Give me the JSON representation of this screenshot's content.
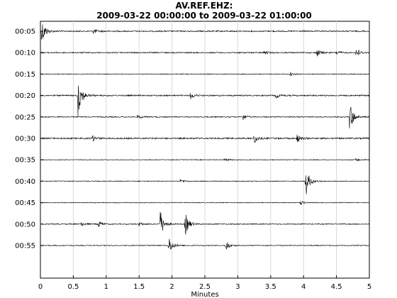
{
  "chart_data": {
    "type": "line",
    "title_line1": "AV.REF.EHZ:",
    "title_line2": "2009-03-22 00:00:00 to 2009-03-22 01:00:00",
    "xlabel": "Minutes",
    "ylabel": "",
    "xlim": [
      0,
      5
    ],
    "x_ticks": [
      "0",
      "0.5",
      "1",
      "1.5",
      "2",
      "2.5",
      "3",
      "3.5",
      "4",
      "4.5",
      "5"
    ],
    "grid": "vertical",
    "row_labels": [
      "00:05",
      "00:10",
      "00:15",
      "00:20",
      "00:25",
      "00:30",
      "00:35",
      "00:40",
      "00:45",
      "00:50",
      "00:55"
    ],
    "traces": [
      {
        "noise": 0.9,
        "events": [
          {
            "t": 0.02,
            "amp": 18
          },
          {
            "t": 0.8,
            "amp": 4
          }
        ]
      },
      {
        "noise": 0.8,
        "events": [
          {
            "t": 3.4,
            "amp": 3
          },
          {
            "t": 4.2,
            "amp": 6
          },
          {
            "t": 4.5,
            "amp": 3
          },
          {
            "t": 4.8,
            "amp": 7
          }
        ]
      },
      {
        "noise": 0.5,
        "events": [
          {
            "t": 3.8,
            "amp": 3
          }
        ]
      },
      {
        "noise": 0.9,
        "events": [
          {
            "t": 0.57,
            "amp": 30
          },
          {
            "t": 2.28,
            "amp": 5
          },
          {
            "t": 3.58,
            "amp": 4
          }
        ]
      },
      {
        "noise": 0.7,
        "events": [
          {
            "t": 1.48,
            "amp": 3
          },
          {
            "t": 3.08,
            "amp": 4
          },
          {
            "t": 4.7,
            "amp": 22
          }
        ]
      },
      {
        "noise": 1.0,
        "events": [
          {
            "t": 0.78,
            "amp": 5
          },
          {
            "t": 3.25,
            "amp": 7
          },
          {
            "t": 3.9,
            "amp": 6
          }
        ]
      },
      {
        "noise": 0.5,
        "events": [
          {
            "t": 2.8,
            "amp": 2
          },
          {
            "t": 4.8,
            "amp": 3
          }
        ]
      },
      {
        "noise": 0.6,
        "events": [
          {
            "t": 2.13,
            "amp": 3
          },
          {
            "t": 4.03,
            "amp": 22
          }
        ]
      },
      {
        "noise": 0.5,
        "events": [
          {
            "t": 3.95,
            "amp": 3
          }
        ]
      },
      {
        "noise": 0.7,
        "events": [
          {
            "t": 0.62,
            "amp": 3
          },
          {
            "t": 0.88,
            "amp": 5
          },
          {
            "t": 1.5,
            "amp": 3
          },
          {
            "t": 1.82,
            "amp": 20
          },
          {
            "t": 2.2,
            "amp": 17
          }
        ]
      },
      {
        "noise": 0.6,
        "events": [
          {
            "t": 1.95,
            "amp": 13
          },
          {
            "t": 2.82,
            "amp": 7
          }
        ]
      }
    ],
    "colors": {
      "trace": "#000000",
      "grid": "#d9d9d9",
      "axis": "#000000",
      "background": "#ffffff"
    }
  }
}
